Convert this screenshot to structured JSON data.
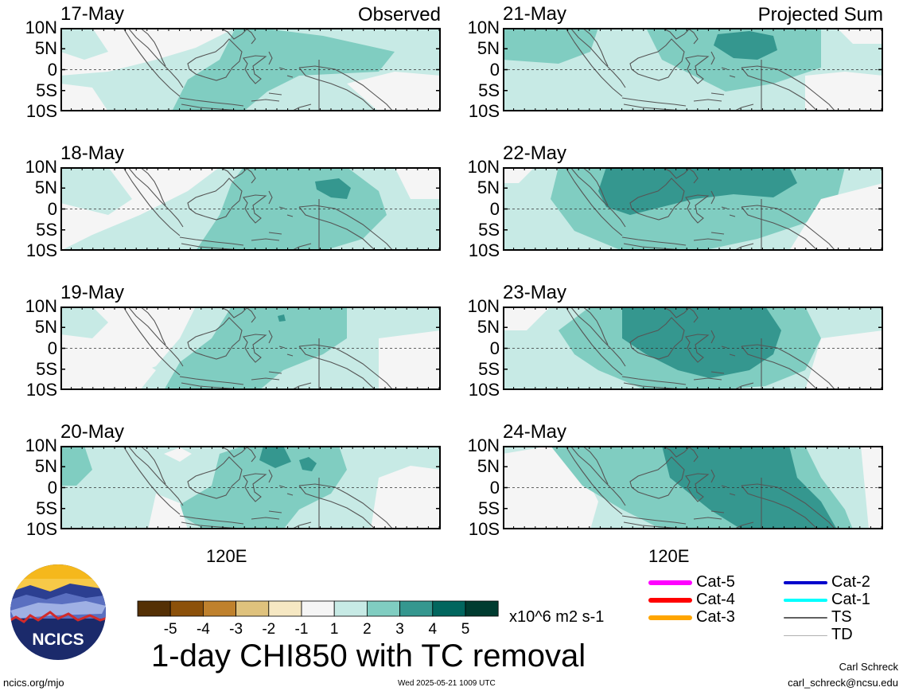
{
  "panels": [
    {
      "date": "17-May",
      "corner": "Observed"
    },
    {
      "date": "18-May",
      "corner": ""
    },
    {
      "date": "19-May",
      "corner": ""
    },
    {
      "date": "20-May",
      "corner": ""
    },
    {
      "date": "21-May",
      "corner": "Projected Sum"
    },
    {
      "date": "22-May",
      "corner": ""
    },
    {
      "date": "23-May",
      "corner": ""
    },
    {
      "date": "24-May",
      "corner": ""
    }
  ],
  "lat_labels": [
    "10N",
    "5N",
    "0",
    "5S",
    "10S"
  ],
  "lon_label": "120E",
  "colorbar": {
    "tick_labels": [
      "-5",
      "-4",
      "-3",
      "-2",
      "-1",
      "1",
      "2",
      "3",
      "4",
      "5"
    ],
    "colors": [
      "#543005",
      "#8c510a",
      "#bf812d",
      "#dfc27d",
      "#f6e8c3",
      "#f5f5f5",
      "#c7eae5",
      "#80cdc1",
      "#35978f",
      "#01665e",
      "#003c30"
    ],
    "units": "x10^6 m2 s-1"
  },
  "title": "1-day CHI850 with TC removal",
  "logo": {
    "text": "NCICS"
  },
  "footer": {
    "left": "ncics.org/mjo",
    "center": "Wed 2025-05-21 1009 UTC",
    "author": "Carl Schreck",
    "email": "carl_schreck@ncsu.edu"
  },
  "tc_legend": [
    {
      "label": "Cat-5",
      "color": "#ff00ff"
    },
    {
      "label": "Cat-4",
      "color": "#ff0000"
    },
    {
      "label": "Cat-3",
      "color": "#ffa500"
    },
    {
      "label": "Cat-2",
      "color": "#0000cc"
    },
    {
      "label": "Cat-1",
      "color": "#00ffff"
    },
    {
      "label": "TS",
      "color": "#606060"
    },
    {
      "label": "TD",
      "color": "#b0b0b0"
    }
  ]
}
